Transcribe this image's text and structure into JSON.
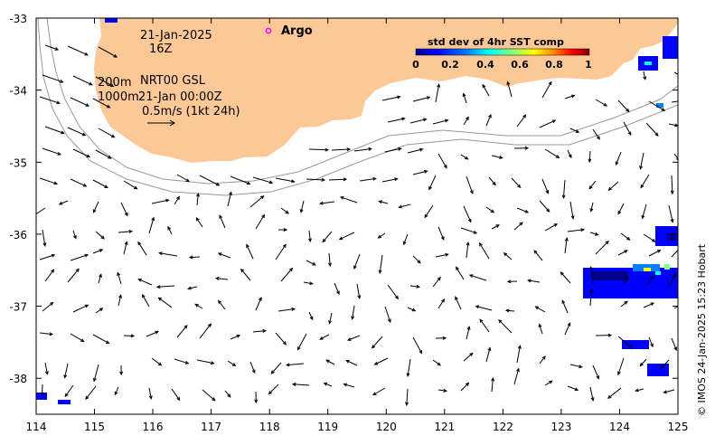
{
  "map": {
    "date": "21-Jan-2025",
    "hour": "16Z",
    "depth_200": "200m",
    "depth_1000": "1000m",
    "product": "NRT00 GSL",
    "product_time": "21-Jan 00:00Z",
    "scale_label": "0.5m/s (1kt 24h)",
    "argo_label": "Argo",
    "credit": "© IMOS 24-Jan-2025 15:23 Hobart",
    "land_color": "#fcc896",
    "argo_color": "#ff00ff"
  },
  "colorbar": {
    "title": "std dev of 4hr SST comp",
    "ticks": [
      "0",
      "0.2",
      "0.4",
      "0.6",
      "0.8",
      "1"
    ],
    "colors": [
      "#00008f",
      "#0000ff",
      "#0080ff",
      "#00ffff",
      "#80ff80",
      "#ffff00",
      "#ff8000",
      "#ff0000",
      "#800000"
    ]
  },
  "axes": {
    "x_ticks": [
      "114",
      "115",
      "116",
      "117",
      "118",
      "119",
      "120",
      "121",
      "122",
      "123",
      "124",
      "125"
    ],
    "y_ticks": [
      "-33",
      "-34",
      "-35",
      "-36",
      "-37",
      "-38"
    ],
    "x_range": [
      114,
      125
    ],
    "y_range": [
      -38.5,
      -33
    ]
  }
}
